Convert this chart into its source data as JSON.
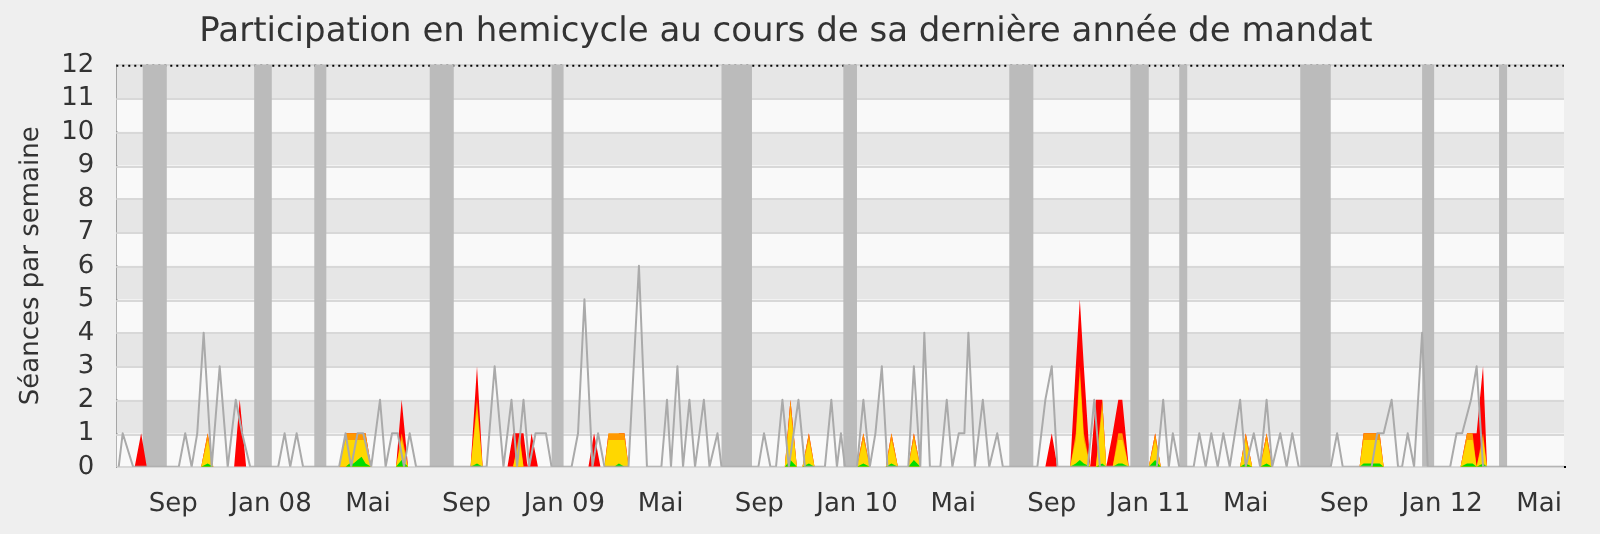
{
  "chart_data": {
    "type": "area",
    "title": "Participation en hemicycle au cours de sa dernière année de mandat",
    "ylabel": "Séances par semaine",
    "xlim": [
      "2007-06-22",
      "2012-06-01"
    ],
    "xticks": [
      {
        "value": "2007-09-01",
        "label": "Sep"
      },
      {
        "value": "2008-01-01",
        "label": "Jan 08"
      },
      {
        "value": "2008-05-01",
        "label": "Mai"
      },
      {
        "value": "2008-09-01",
        "label": "Sep"
      },
      {
        "value": "2009-01-01",
        "label": "Jan 09"
      },
      {
        "value": "2009-05-01",
        "label": "Mai"
      },
      {
        "value": "2009-09-01",
        "label": "Sep"
      },
      {
        "value": "2010-01-01",
        "label": "Jan 10"
      },
      {
        "value": "2010-05-01",
        "label": "Mai"
      },
      {
        "value": "2010-09-01",
        "label": "Sep"
      },
      {
        "value": "2011-01-01",
        "label": "Jan 11"
      },
      {
        "value": "2011-05-01",
        "label": "Mai"
      },
      {
        "value": "2011-09-01",
        "label": "Sep"
      },
      {
        "value": "2012-01-01",
        "label": "Jan 12"
      },
      {
        "value": "2012-05-01",
        "label": "Mai"
      }
    ],
    "ylim": [
      0,
      12
    ],
    "yticks": [
      0,
      1,
      2,
      3,
      4,
      5,
      6,
      7,
      8,
      9,
      10,
      11,
      12
    ],
    "grid": "y",
    "legend": false,
    "bands": [
      {
        "axis": "x",
        "from": "2007-07-25",
        "to": "2007-08-24",
        "color": "#bbbbbb"
      },
      {
        "axis": "x",
        "from": "2007-12-11",
        "to": "2008-01-02",
        "color": "#bbbbbb"
      },
      {
        "axis": "x",
        "from": "2008-02-24",
        "to": "2008-03-10",
        "color": "#bbbbbb"
      },
      {
        "axis": "x",
        "from": "2008-07-17",
        "to": "2008-08-16",
        "color": "#bbbbbb"
      },
      {
        "axis": "x",
        "from": "2008-12-16",
        "to": "2008-12-31",
        "color": "#bbbbbb"
      },
      {
        "axis": "x",
        "from": "2009-07-16",
        "to": "2009-08-23",
        "color": "#bbbbbb"
      },
      {
        "axis": "x",
        "from": "2009-12-15",
        "to": "2010-01-01",
        "color": "#bbbbbb"
      },
      {
        "axis": "x",
        "from": "2010-07-10",
        "to": "2010-08-09",
        "color": "#bbbbbb"
      },
      {
        "axis": "x",
        "from": "2010-12-08",
        "to": "2010-12-31",
        "color": "#bbbbbb"
      },
      {
        "axis": "x",
        "from": "2011-02-07",
        "to": "2011-02-17",
        "color": "#bbbbbb"
      },
      {
        "axis": "x",
        "from": "2011-07-08",
        "to": "2011-08-15",
        "color": "#bbbbbb"
      },
      {
        "axis": "x",
        "from": "2011-12-07",
        "to": "2011-12-22",
        "color": "#bbbbbb"
      },
      {
        "axis": "x",
        "from": "2012-03-12",
        "to": "2012-03-22",
        "color": "#bbbbbb"
      }
    ],
    "x": [
      "2007-07-15",
      "2007-07-23",
      "2007-07-30",
      "2007-10-06",
      "2007-10-14",
      "2007-10-21",
      "2007-11-16",
      "2007-11-23",
      "2007-12-01",
      "2008-03-26",
      "2008-04-03",
      "2008-04-08",
      "2008-04-13",
      "2008-04-18",
      "2008-04-23",
      "2008-04-28",
      "2008-05-05",
      "2008-06-05",
      "2008-06-12",
      "2008-06-20",
      "2008-09-06",
      "2008-09-14",
      "2008-09-21",
      "2008-10-22",
      "2008-10-29",
      "2008-11-06",
      "2008-11-11",
      "2008-11-16",
      "2008-11-21",
      "2008-11-29",
      "2009-01-31",
      "2009-02-07",
      "2009-02-15",
      "2009-02-20",
      "2009-02-25",
      "2009-03-04",
      "2009-03-10",
      "2009-03-17",
      "2009-03-22",
      "2009-10-03",
      "2009-10-10",
      "2009-10-18",
      "2009-10-25",
      "2009-11-02",
      "2009-11-09",
      "2010-01-01",
      "2010-01-09",
      "2010-01-17",
      "2010-02-06",
      "2010-02-13",
      "2010-02-21",
      "2010-03-06",
      "2010-03-13",
      "2010-03-21",
      "2010-08-24",
      "2010-09-01",
      "2010-09-08",
      "2010-09-24",
      "2010-10-01",
      "2010-10-06",
      "2010-10-11",
      "2010-10-19",
      "2010-10-26",
      "2010-11-03",
      "2010-11-08",
      "2010-11-16",
      "2010-11-23",
      "2010-11-28",
      "2010-12-06",
      "2010-12-31",
      "2011-01-08",
      "2011-01-15",
      "2011-04-24",
      "2011-05-01",
      "2011-05-09",
      "2011-05-19",
      "2011-05-27",
      "2011-06-03",
      "2011-09-20",
      "2011-09-25",
      "2011-10-15",
      "2011-10-20",
      "2012-01-24",
      "2012-02-01",
      "2012-02-08",
      "2012-02-13",
      "2012-02-21",
      "2012-02-26"
    ],
    "series": [
      {
        "type": "line",
        "color": "#aaaaaa",
        "x": [
          "2007-06-25",
          "2007-06-30",
          "2007-07-13",
          "2007-09-08",
          "2007-09-16",
          "2007-09-24",
          "2007-10-01",
          "2007-10-09",
          "2007-10-19",
          "2007-10-29",
          "2007-11-08",
          "2007-11-18",
          "2007-11-26",
          "2007-12-06",
          "2008-01-10",
          "2008-01-18",
          "2008-01-25",
          "2008-02-02",
          "2008-02-10",
          "2008-03-26",
          "2008-04-03",
          "2008-04-10",
          "2008-04-18",
          "2008-04-25",
          "2008-05-05",
          "2008-05-16",
          "2008-05-23",
          "2008-05-31",
          "2008-06-07",
          "2008-06-15",
          "2008-06-22",
          "2008-06-30",
          "2008-09-26",
          "2008-10-06",
          "2008-10-17",
          "2008-10-27",
          "2008-11-03",
          "2008-11-11",
          "2008-11-18",
          "2008-11-26",
          "2008-12-09",
          "2008-12-16",
          "2009-01-10",
          "2009-01-18",
          "2009-01-26",
          "2009-02-05",
          "2009-02-12",
          "2009-02-20",
          "2009-03-22",
          "2009-04-04",
          "2009-04-14",
          "2009-05-02",
          "2009-05-09",
          "2009-05-14",
          "2009-05-22",
          "2009-05-29",
          "2009-06-06",
          "2009-06-13",
          "2009-06-24",
          "2009-07-01",
          "2009-07-11",
          "2009-07-16",
          "2009-08-31",
          "2009-09-07",
          "2009-09-15",
          "2009-09-22",
          "2009-09-30",
          "2009-10-08",
          "2009-10-20",
          "2009-10-28",
          "2009-11-22",
          "2009-11-30",
          "2009-12-07",
          "2009-12-12",
          "2009-12-17",
          "2010-01-01",
          "2010-01-09",
          "2010-01-17",
          "2010-01-24",
          "2010-02-01",
          "2010-02-08",
          "2010-03-06",
          "2010-03-13",
          "2010-03-21",
          "2010-03-26",
          "2010-04-02",
          "2010-04-15",
          "2010-04-23",
          "2010-04-30",
          "2010-05-08",
          "2010-05-15",
          "2010-05-20",
          "2010-05-28",
          "2010-06-07",
          "2010-06-15",
          "2010-06-25",
          "2010-07-02",
          "2010-08-14",
          "2010-08-24",
          "2010-09-01",
          "2010-09-08",
          "2010-10-16",
          "2010-10-24",
          "2010-10-31",
          "2011-01-10",
          "2011-01-18",
          "2011-01-25",
          "2011-01-30",
          "2011-02-07",
          "2011-02-25",
          "2011-03-04",
          "2011-03-12",
          "2011-03-19",
          "2011-03-27",
          "2011-04-03",
          "2011-04-11",
          "2011-04-24",
          "2011-05-01",
          "2011-05-11",
          "2011-05-19",
          "2011-05-27",
          "2011-06-03",
          "2011-06-13",
          "2011-06-21",
          "2011-06-28",
          "2011-07-06",
          "2011-08-15",
          "2011-08-23",
          "2011-08-30",
          "2011-10-05",
          "2011-10-12",
          "2011-10-20",
          "2011-10-30",
          "2011-11-07",
          "2011-11-12",
          "2011-11-19",
          "2011-11-27",
          "2011-12-07",
          "2011-12-14",
          "2012-01-11",
          "2012-01-19",
          "2012-01-26",
          "2012-02-06",
          "2012-02-13",
          "2012-02-21",
          "2012-06-01"
        ],
        "values": [
          0,
          1,
          0,
          0,
          1,
          0,
          1,
          4,
          0,
          3,
          0,
          2,
          1,
          0,
          0,
          1,
          0,
          1,
          0,
          0,
          1,
          0,
          1,
          1,
          0,
          2,
          0,
          1,
          1,
          0,
          1,
          0,
          0,
          3,
          0,
          2,
          0,
          2,
          0,
          1,
          1,
          0,
          0,
          1,
          5,
          0,
          1,
          0,
          0,
          6,
          0,
          0,
          2,
          0,
          3,
          0,
          2,
          0,
          2,
          0,
          1,
          0,
          0,
          1,
          0,
          0,
          2,
          0,
          2,
          0,
          0,
          2,
          0,
          1,
          0,
          0,
          2,
          0,
          1,
          3,
          0,
          0,
          3,
          0,
          4,
          0,
          0,
          2,
          0,
          1,
          1,
          4,
          0,
          2,
          0,
          1,
          0,
          0,
          2,
          3,
          0,
          0,
          2,
          0,
          0,
          2,
          0,
          1,
          0,
          0,
          1,
          0,
          1,
          0,
          1,
          0,
          2,
          0,
          1,
          0,
          2,
          0,
          1,
          0,
          1,
          0,
          0,
          1,
          0,
          0,
          1,
          1,
          2,
          0,
          0,
          1,
          0,
          4,
          0,
          0,
          1,
          1,
          2,
          3,
          0,
          0
        ]
      },
      {
        "color": "#ff0000",
        "values": [
          0,
          1,
          0,
          0,
          1,
          0,
          0,
          2,
          0,
          0,
          1,
          1,
          1,
          1,
          1,
          1,
          0,
          0,
          2,
          0,
          0,
          3,
          0,
          0,
          1,
          1,
          1,
          0,
          1,
          0,
          0,
          1,
          0,
          0,
          1,
          0,
          1,
          1,
          0,
          0,
          2,
          0,
          0,
          1,
          0,
          0,
          1,
          0,
          0,
          1,
          0,
          0,
          1,
          0,
          0,
          1,
          0,
          0,
          3,
          5,
          3,
          0,
          2,
          2,
          0,
          1,
          2,
          2,
          0,
          0,
          1,
          0,
          0,
          1,
          0,
          0,
          1,
          0,
          0,
          1,
          1,
          0,
          0,
          1,
          1,
          1,
          3,
          0
        ]
      },
      {
        "color": "#ff9900",
        "values": [
          0,
          0,
          0,
          0,
          1,
          0,
          0,
          0,
          0,
          0,
          1,
          1,
          1,
          1,
          1,
          1,
          0,
          0,
          1,
          0,
          0,
          2,
          0,
          0,
          0,
          1,
          0,
          0,
          0,
          0,
          0,
          0,
          0,
          0,
          1,
          1,
          1,
          1,
          0,
          0,
          2,
          0,
          0,
          1,
          0,
          0,
          1,
          0,
          0,
          1,
          0,
          0,
          1,
          0,
          0,
          0,
          0,
          0,
          1,
          3,
          1,
          0,
          0,
          2,
          0,
          0,
          1,
          1,
          0,
          0,
          1,
          0,
          0,
          1,
          0,
          0,
          1,
          0,
          0,
          1,
          1,
          0,
          0,
          1,
          1,
          0,
          1,
          0
        ]
      },
      {
        "color": "#ffd700",
        "values": [
          0,
          0,
          0,
          0,
          0.8,
          0,
          0,
          0,
          0,
          0,
          0.8,
          0.8,
          0.8,
          0.8,
          0.8,
          0.8,
          0,
          0,
          0.8,
          0,
          0,
          1.7,
          0,
          0,
          0,
          0.8,
          0,
          0,
          0,
          0,
          0,
          0,
          0,
          0,
          0.8,
          0.8,
          0.8,
          0.8,
          0,
          0,
          1.7,
          0,
          0,
          0.8,
          0,
          0,
          0.8,
          0,
          0,
          0.8,
          0,
          0,
          0.8,
          0,
          0,
          0,
          0,
          0,
          0.8,
          2.7,
          0.8,
          0,
          0,
          1.7,
          0,
          0,
          0.8,
          0.8,
          0,
          0,
          0.8,
          0,
          0,
          0.8,
          0,
          0,
          0.8,
          0,
          0,
          0.8,
          0.8,
          0,
          0,
          0.8,
          0.8,
          0,
          0.8,
          0
        ]
      },
      {
        "color": "#00dd00",
        "values": [
          0,
          0,
          0,
          0,
          0.1,
          0,
          0,
          0,
          0,
          0,
          0,
          0.1,
          0.1,
          0.2,
          0.3,
          0.1,
          0,
          0,
          0.2,
          0,
          0,
          0.1,
          0,
          0,
          0,
          0,
          0,
          0,
          0,
          0,
          0,
          0,
          0,
          0,
          0,
          0,
          0.1,
          0,
          0,
          0,
          0.2,
          0,
          0,
          0.1,
          0,
          0,
          0.1,
          0,
          0,
          0.1,
          0,
          0,
          0.2,
          0,
          0,
          0,
          0,
          0,
          0.1,
          0.2,
          0.1,
          0,
          0,
          0.1,
          0,
          0,
          0.1,
          0.1,
          0,
          0,
          0.2,
          0,
          0,
          0.1,
          0,
          0,
          0.1,
          0,
          0,
          0.1,
          0.1,
          0,
          0,
          0.1,
          0.1,
          0,
          0.1,
          0
        ]
      }
    ]
  }
}
